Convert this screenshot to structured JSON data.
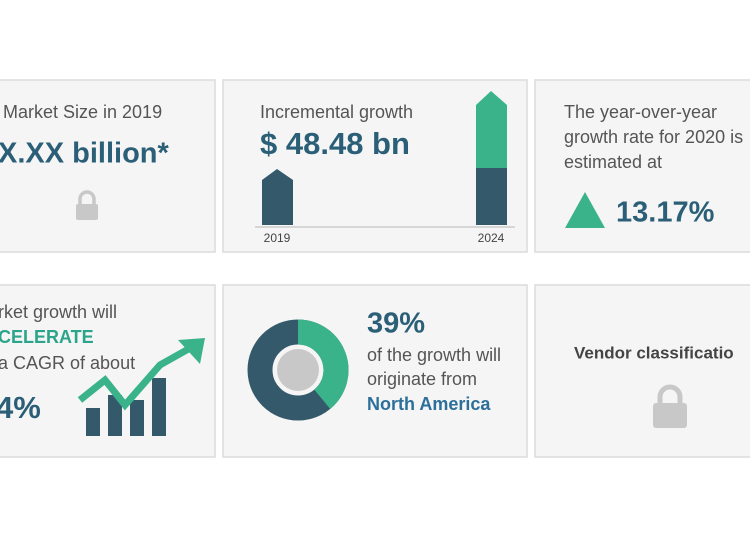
{
  "market_size": {
    "title": "Market Size in 2019",
    "value": "X.XX billion*"
  },
  "incremental": {
    "title": "Incremental growth",
    "value": "$ 48.48 bn",
    "labels": [
      "2019",
      "2024"
    ]
  },
  "yoy": {
    "lines": [
      "The year-over-year",
      "growth rate for 2020 is",
      "estimated at"
    ],
    "value": "13.17%"
  },
  "cagr": {
    "lines": [
      "rket growth will",
      "CELERATE",
      "a CAGR of about"
    ],
    "value": "4%"
  },
  "region": {
    "share": {
      "value": 39,
      "label": "39%"
    },
    "lines": [
      "of the growth will",
      "originate from"
    ],
    "name": "North America"
  },
  "vendor": {
    "title": "Vendor classificatio"
  }
}
